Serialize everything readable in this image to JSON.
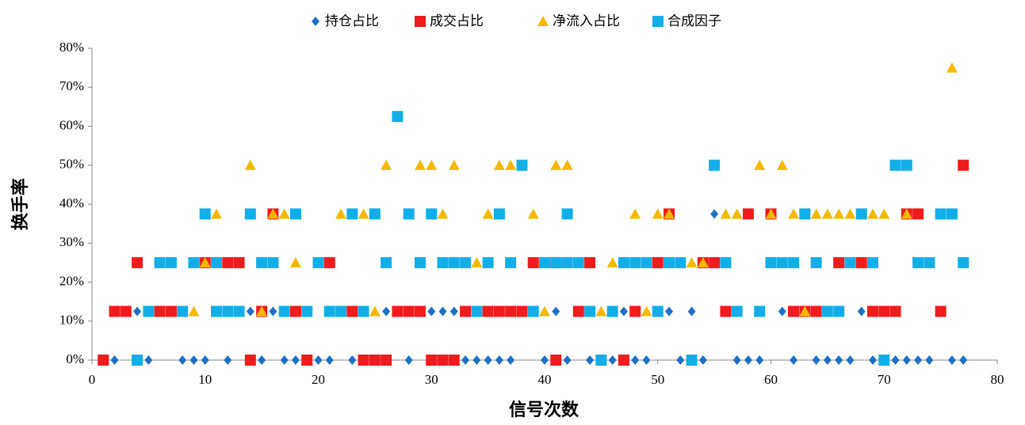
{
  "chart_data": {
    "type": "scatter",
    "xlabel": "信号次数",
    "ylabel": "换手率",
    "xlim": [
      0,
      80
    ],
    "xticks": [
      0,
      10,
      20,
      30,
      40,
      50,
      60,
      70,
      80
    ],
    "ylim": [
      0,
      80
    ],
    "yticks": [
      {
        "value": 0,
        "label": "0%"
      },
      {
        "value": 10,
        "label": "10%"
      },
      {
        "value": 20,
        "label": "20%"
      },
      {
        "value": 30,
        "label": "30%"
      },
      {
        "value": 40,
        "label": "40%"
      },
      {
        "value": 50,
        "label": "50%"
      },
      {
        "value": 60,
        "label": "60%"
      },
      {
        "value": 70,
        "label": "70%"
      },
      {
        "value": 80,
        "label": "80%"
      }
    ],
    "grid": false,
    "legend": "top",
    "series": [
      {
        "name": "持仓占比",
        "color": "#1f6fc5",
        "marker": "diamond",
        "x": [
          2,
          5,
          8,
          9,
          10,
          12,
          15,
          17,
          18,
          20,
          21,
          23,
          28,
          30,
          33,
          34,
          35,
          36,
          37,
          40,
          42,
          44,
          46,
          48,
          49,
          52,
          54,
          57,
          58,
          59,
          62,
          64,
          65,
          66,
          67,
          69,
          71,
          72,
          73,
          74,
          76,
          77,
          4,
          11,
          14,
          16,
          26,
          30,
          31,
          32,
          41,
          47,
          51,
          53,
          61,
          68,
          55
        ],
        "values": [
          0,
          0,
          0,
          0,
          0,
          0,
          0,
          0,
          0,
          0,
          0,
          0,
          0,
          0,
          0,
          0,
          0,
          0,
          0,
          0,
          0,
          0,
          0,
          0,
          0,
          0,
          0,
          0,
          0,
          0,
          0,
          0,
          0,
          0,
          0,
          0,
          0,
          0,
          0,
          0,
          0,
          0,
          12.5,
          12.5,
          12.5,
          12.5,
          12.5,
          12.5,
          12.5,
          12.5,
          12.5,
          12.5,
          12.5,
          12.5,
          12.5,
          12.5,
          37.5
        ]
      },
      {
        "name": "成交占比",
        "color": "#ee1c1c",
        "marker": "square",
        "x": [
          1,
          14,
          19,
          24,
          25,
          26,
          30,
          31,
          32,
          41,
          47,
          2,
          3,
          6,
          7,
          15,
          18,
          23,
          27,
          28,
          29,
          33,
          35,
          36,
          37,
          38,
          43,
          48,
          56,
          62,
          63,
          64,
          69,
          70,
          71,
          75,
          4,
          10,
          12,
          13,
          21,
          39,
          41,
          44,
          50,
          54,
          55,
          66,
          68,
          16,
          51,
          58,
          60,
          72,
          73,
          77
        ],
        "values": [
          0,
          0,
          0,
          0,
          0,
          0,
          0,
          0,
          0,
          0,
          0,
          12.5,
          12.5,
          12.5,
          12.5,
          12.5,
          12.5,
          12.5,
          12.5,
          12.5,
          12.5,
          12.5,
          12.5,
          12.5,
          12.5,
          12.5,
          12.5,
          12.5,
          12.5,
          12.5,
          12.5,
          12.5,
          12.5,
          12.5,
          12.5,
          12.5,
          25,
          25,
          25,
          25,
          25,
          25,
          25,
          25,
          25,
          25,
          25,
          25,
          25,
          37.5,
          37.5,
          37.5,
          37.5,
          37.5,
          37.5,
          50
        ]
      },
      {
        "name": "净流入占比",
        "color": "#f5b800",
        "marker": "triangle",
        "x": [
          9,
          15,
          25,
          40,
          45,
          49,
          63,
          10,
          18,
          34,
          46,
          53,
          54,
          11,
          16,
          17,
          22,
          24,
          31,
          35,
          39,
          48,
          50,
          51,
          56,
          57,
          60,
          62,
          64,
          65,
          66,
          67,
          69,
          70,
          72,
          14,
          26,
          29,
          30,
          32,
          36,
          37,
          41,
          42,
          59,
          61,
          76
        ],
        "values": [
          12.5,
          12.5,
          12.5,
          12.5,
          12.5,
          12.5,
          12.5,
          25,
          25,
          25,
          25,
          25,
          25,
          37.5,
          37.5,
          37.5,
          37.5,
          37.5,
          37.5,
          37.5,
          37.5,
          37.5,
          37.5,
          37.5,
          37.5,
          37.5,
          37.5,
          37.5,
          37.5,
          37.5,
          37.5,
          37.5,
          37.5,
          37.5,
          37.5,
          50,
          50,
          50,
          50,
          50,
          50,
          50,
          50,
          50,
          50,
          50,
          75
        ]
      },
      {
        "name": "合成因子",
        "color": "#12aee8",
        "marker": "square",
        "x": [
          4,
          45,
          53,
          70,
          5,
          8,
          11,
          12,
          13,
          17,
          19,
          21,
          22,
          24,
          34,
          39,
          44,
          46,
          50,
          57,
          59,
          65,
          66,
          6,
          7,
          9,
          11,
          15,
          16,
          20,
          26,
          29,
          31,
          32,
          33,
          35,
          37,
          40,
          41,
          42,
          43,
          47,
          48,
          49,
          51,
          52,
          56,
          60,
          61,
          62,
          64,
          67,
          69,
          73,
          74,
          77,
          10,
          14,
          18,
          23,
          25,
          28,
          30,
          36,
          42,
          63,
          68,
          75,
          76,
          38,
          55,
          71,
          72,
          27
        ],
        "values": [
          0,
          0,
          0,
          0,
          12.5,
          12.5,
          12.5,
          12.5,
          12.5,
          12.5,
          12.5,
          12.5,
          12.5,
          12.5,
          12.5,
          12.5,
          12.5,
          12.5,
          12.5,
          12.5,
          12.5,
          12.5,
          12.5,
          25,
          25,
          25,
          25,
          25,
          25,
          25,
          25,
          25,
          25,
          25,
          25,
          25,
          25,
          25,
          25,
          25,
          25,
          25,
          25,
          25,
          25,
          25,
          25,
          25,
          25,
          25,
          25,
          25,
          25,
          25,
          25,
          25,
          37.5,
          37.5,
          37.5,
          37.5,
          37.5,
          37.5,
          37.5,
          37.5,
          37.5,
          37.5,
          37.5,
          37.5,
          37.5,
          50,
          50,
          50,
          50,
          62.5
        ]
      }
    ]
  }
}
